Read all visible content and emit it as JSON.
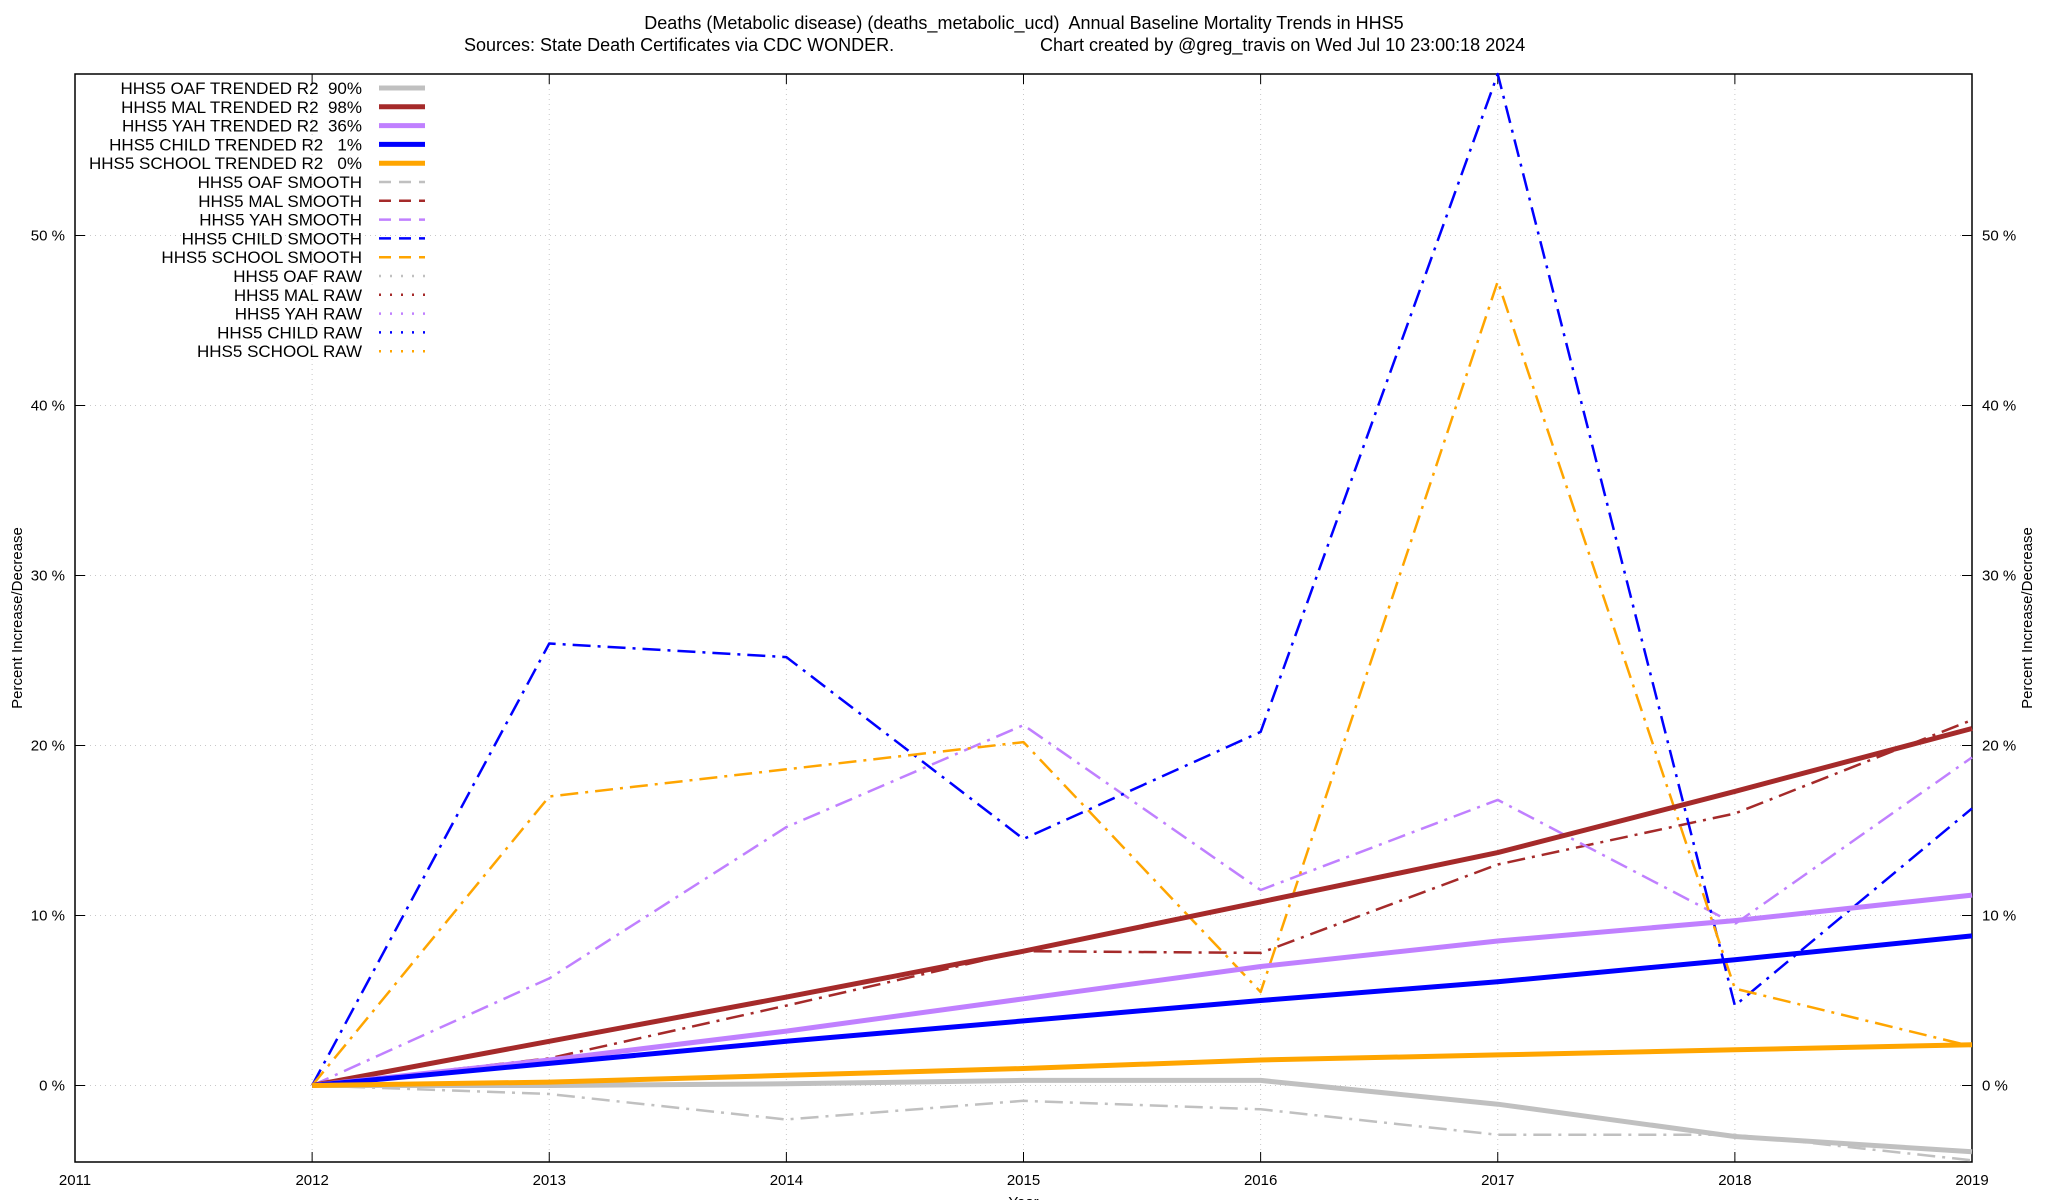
{
  "chart_data": {
    "type": "line",
    "title": "Deaths (Metabolic disease) (deaths_metabolic_ucd)  Annual Baseline Mortality Trends in HHS5",
    "subtitle_sources": "Sources: State Death Certificates via CDC WONDER.",
    "subtitle_credit": "Chart created by @greg_travis on Wed Jul 10 23:00:18 2024",
    "xlabel": "Year",
    "ylabel_left": "Percent Increase/Decrease",
    "ylabel_right": "Percent Increase/Decrease",
    "xlim": [
      2011,
      2019
    ],
    "ylim": [
      -4.5,
      59.5
    ],
    "x_ticks": [
      2011,
      2012,
      2013,
      2014,
      2015,
      2016,
      2017,
      2018,
      2019
    ],
    "x_tick_labels": [
      "2011",
      "2012",
      "2013",
      "2014",
      "2015",
      "2016",
      "2017",
      "2018",
      "2019"
    ],
    "y_ticks": [
      0,
      10,
      20,
      30,
      40,
      50
    ],
    "y_tick_labels": [
      "0 %",
      "10 %",
      "20 %",
      "30 %",
      "40 %",
      "50 %"
    ],
    "grid": true,
    "legend_position": "top-left",
    "series": [
      {
        "name": "HHS5 OAF TRENDED R2  90%",
        "style": "solid",
        "color": "#c0c0c0",
        "x": [
          2012,
          2013,
          2014,
          2015,
          2016,
          2017,
          2018,
          2019
        ],
        "values": [
          0,
          0.0,
          0.1,
          0.3,
          0.3,
          -1.1,
          -3.0,
          -3.9
        ]
      },
      {
        "name": "HHS5 MAL TRENDED R2  98%",
        "style": "solid",
        "color": "#a52a2a",
        "x": [
          2012,
          2013,
          2014,
          2015,
          2016,
          2017,
          2018,
          2019
        ],
        "values": [
          0,
          2.6,
          5.2,
          7.9,
          10.8,
          13.7,
          17.3,
          21.0
        ]
      },
      {
        "name": "HHS5 YAH TRENDED R2  36%",
        "style": "solid",
        "color": "#c080ff",
        "x": [
          2012,
          2013,
          2014,
          2015,
          2016,
          2017,
          2018,
          2019
        ],
        "values": [
          0,
          1.5,
          3.2,
          5.1,
          7.0,
          8.5,
          9.7,
          11.2
        ]
      },
      {
        "name": "HHS5 CHILD TRENDED R2   1%",
        "style": "solid",
        "color": "#0000ff",
        "x": [
          2012,
          2013,
          2014,
          2015,
          2016,
          2017,
          2018,
          2019
        ],
        "values": [
          0,
          1.3,
          2.6,
          3.8,
          5.0,
          6.1,
          7.4,
          8.8
        ]
      },
      {
        "name": "HHS5 SCHOOL TRENDED R2   0%",
        "style": "solid",
        "color": "#ffa500",
        "x": [
          2012,
          2013,
          2014,
          2015,
          2016,
          2017,
          2018,
          2019
        ],
        "values": [
          0,
          0.2,
          0.6,
          1.0,
          1.5,
          1.8,
          2.1,
          2.4
        ]
      },
      {
        "name": "HHS5 OAF SMOOTH",
        "style": "dashdot",
        "color": "#c0c0c0",
        "x": [
          2012,
          2013,
          2014,
          2015,
          2016,
          2017,
          2018,
          2019
        ],
        "values": [
          0,
          -0.5,
          -2.0,
          -0.9,
          -1.4,
          -2.9,
          -2.9,
          -4.4
        ]
      },
      {
        "name": "HHS5 MAL SMOOTH",
        "style": "dashdot",
        "color": "#a52a2a",
        "x": [
          2012,
          2013,
          2014,
          2015,
          2016,
          2017,
          2018,
          2019
        ],
        "values": [
          0,
          1.6,
          4.7,
          7.9,
          7.8,
          13.0,
          16.0,
          21.5
        ]
      },
      {
        "name": "HHS5 YAH SMOOTH",
        "style": "dashdot",
        "color": "#c080ff",
        "x": [
          2012,
          2013,
          2014,
          2015,
          2016,
          2017,
          2018,
          2019
        ],
        "values": [
          0,
          6.3,
          15.2,
          21.2,
          11.5,
          16.8,
          9.5,
          19.3
        ]
      },
      {
        "name": "HHS5 CHILD SMOOTH",
        "style": "dashdot",
        "color": "#0000ff",
        "x": [
          2012,
          2013,
          2014,
          2015,
          2016,
          2017,
          2018,
          2019
        ],
        "values": [
          0,
          26.0,
          25.2,
          14.5,
          20.8,
          59.5,
          4.7,
          16.3
        ]
      },
      {
        "name": "HHS5 SCHOOL SMOOTH",
        "style": "dashdot",
        "color": "#ffa500",
        "x": [
          2012,
          2013,
          2014,
          2015,
          2016,
          2017,
          2018,
          2019
        ],
        "values": [
          0,
          17.0,
          18.6,
          20.2,
          5.5,
          47.3,
          5.7,
          2.3
        ]
      },
      {
        "name": "HHS5 OAF RAW",
        "style": "dotted",
        "color": "#c0c0c0",
        "x": [],
        "values": []
      },
      {
        "name": "HHS5 MAL RAW",
        "style": "dotted",
        "color": "#a52a2a",
        "x": [],
        "values": []
      },
      {
        "name": "HHS5 YAH RAW",
        "style": "dotted",
        "color": "#c080ff",
        "x": [],
        "values": []
      },
      {
        "name": "HHS5 CHILD RAW",
        "style": "dotted",
        "color": "#0000ff",
        "x": [],
        "values": []
      },
      {
        "name": "HHS5 SCHOOL RAW",
        "style": "dotted",
        "color": "#ffa500",
        "x": [],
        "values": []
      }
    ]
  }
}
